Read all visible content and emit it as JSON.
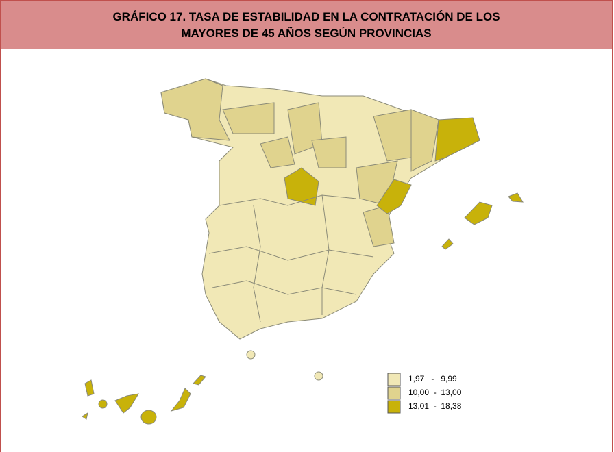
{
  "header": {
    "title_lines": [
      "GRÁFICO 17. TASA DE ESTABILIDAD EN LA CONTRATACIÓN DE LOS",
      "MAYORES DE 45 AÑOS SEGÚN PROVINCIAS"
    ]
  },
  "legend": {
    "items": [
      {
        "label": "1,97   -   9,99",
        "color": "#f1e8b6"
      },
      {
        "label": "10,00  -  13,00",
        "color": "#e0d38e"
      },
      {
        "label": "13,01  -  18,38",
        "color": "#c8b20a"
      }
    ]
  }
}
